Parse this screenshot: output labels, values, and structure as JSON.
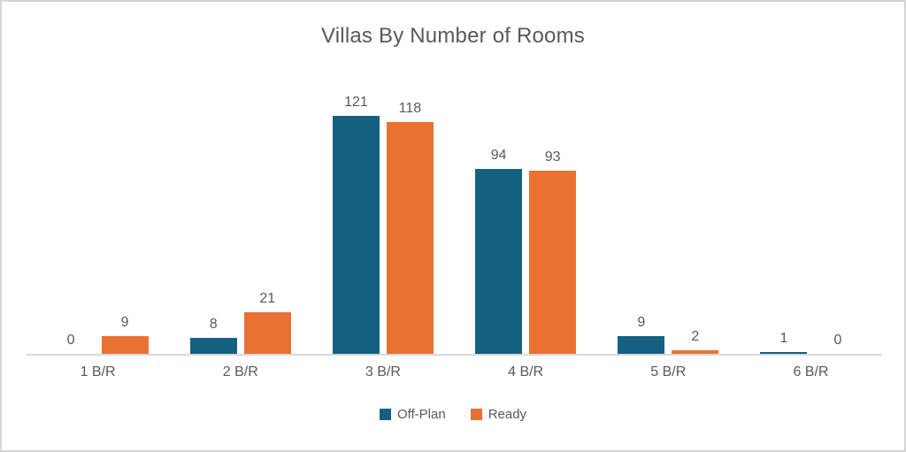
{
  "frame": {
    "background_color": "#ffffff",
    "border_color": "#d6d6d6"
  },
  "chart_data": {
    "type": "bar",
    "title": "Villas By Number of Rooms",
    "categories": [
      "1 B/R",
      "2 B/R",
      "3 B/R",
      "4 B/R",
      "5 B/R",
      "6 B/R"
    ],
    "series": [
      {
        "name": "Off-Plan",
        "color": "#156082",
        "values": [
          0,
          8,
          121,
          94,
          9,
          1
        ]
      },
      {
        "name": "Ready",
        "color": "#E97132",
        "values": [
          9,
          21,
          118,
          93,
          2,
          0
        ]
      }
    ],
    "xlabel": "",
    "ylabel": "",
    "ylim": [
      0,
      135
    ],
    "grid": false,
    "axis_line_color": "#d9d9d9",
    "data_labels": true,
    "data_label_color": "#595959",
    "tick_label_color": "#595959",
    "title_color": "#595959",
    "legend_position": "bottom"
  }
}
